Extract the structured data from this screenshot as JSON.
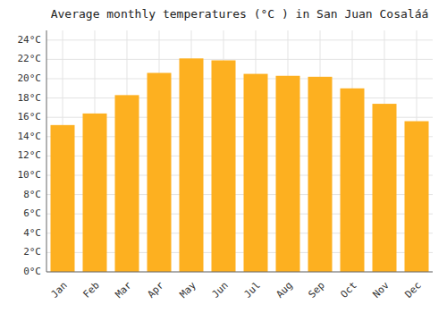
{
  "chart_data": {
    "type": "bar",
    "title": "Average monthly temperatures (°C ) in San Juan Cosaláá",
    "categories": [
      "Jan",
      "Feb",
      "Mar",
      "Apr",
      "May",
      "Jun",
      "Jul",
      "Aug",
      "Sep",
      "Oct",
      "Nov",
      "Dec"
    ],
    "values": [
      15.2,
      16.4,
      18.3,
      20.6,
      22.1,
      21.9,
      20.5,
      20.3,
      20.2,
      19.0,
      17.4,
      15.6
    ],
    "color": "#FDB020",
    "ylim": [
      0,
      25
    ],
    "yticks": [
      {
        "value": 0,
        "label": "0°C"
      },
      {
        "value": 2,
        "label": "2°C"
      },
      {
        "value": 4,
        "label": "4°C"
      },
      {
        "value": 6,
        "label": "6°C"
      },
      {
        "value": 8,
        "label": "8°C"
      },
      {
        "value": 10,
        "label": "10°C"
      },
      {
        "value": 12,
        "label": "12°C"
      },
      {
        "value": 14,
        "label": "14°C"
      },
      {
        "value": 16,
        "label": "16°C"
      },
      {
        "value": 18,
        "label": "18°C"
      },
      {
        "value": 20,
        "label": "20°C"
      },
      {
        "value": 22,
        "label": "22°C"
      },
      {
        "value": 24,
        "label": "24°C"
      }
    ],
    "grid": true
  }
}
